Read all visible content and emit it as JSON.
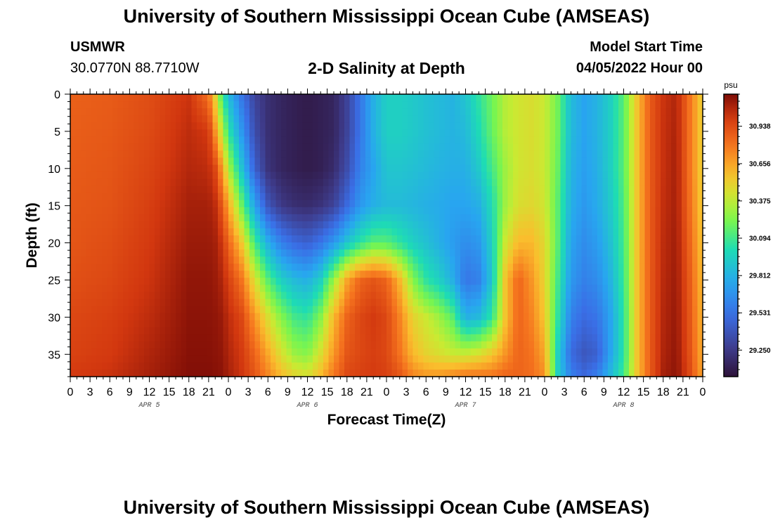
{
  "page": {
    "title": "University of Southern Mississippi Ocean Cube (AMSEAS)",
    "station": "USMWR",
    "coordinates": "30.0770N  88.7710W",
    "subtitle": "2-D Salinity at Depth",
    "model_start_label": "Model Start Time",
    "model_start_value": "04/05/2022 Hour 00",
    "footer_title": "University of Southern Mississippi Ocean Cube (AMSEAS)"
  },
  "chart_data": {
    "type": "heatmap",
    "title": "2-D Salinity at Depth",
    "xlabel": "Forecast Time(Z)",
    "ylabel": "Depth (ft)",
    "x_range_hours": [
      0,
      96
    ],
    "y_range_ft": [
      0,
      38
    ],
    "x_tick_hours": [
      0,
      3,
      6,
      9,
      12,
      15,
      18,
      21,
      24,
      27,
      30,
      33,
      36,
      39,
      42,
      45,
      48,
      51,
      54,
      57,
      60,
      63,
      66,
      69,
      72,
      75,
      78,
      81,
      84,
      87,
      90,
      93,
      96
    ],
    "x_tick_labels": [
      "0",
      "3",
      "6",
      "9",
      "12",
      "15",
      "18",
      "21",
      "0",
      "3",
      "6",
      "9",
      "12",
      "15",
      "18",
      "21",
      "0",
      "3",
      "6",
      "9",
      "12",
      "15",
      "18",
      "21",
      "0",
      "3",
      "6",
      "9",
      "12",
      "15",
      "18",
      "21",
      "0"
    ],
    "day_labels": [
      {
        "label": "APR 5",
        "hour": 12
      },
      {
        "label": "APR 6",
        "hour": 36
      },
      {
        "label": "APR 7",
        "hour": 60
      },
      {
        "label": "APR 8",
        "hour": 84
      }
    ],
    "y_ticks": [
      0,
      5,
      10,
      15,
      20,
      25,
      30,
      35
    ],
    "y_tick_labels": [
      "0",
      "5",
      "10",
      "15",
      "20",
      "25",
      "30",
      "35"
    ],
    "colorbar": {
      "unit": "psu",
      "range": [
        29.05,
        31.18
      ],
      "ticks": [
        29.25,
        29.531,
        29.812,
        30.094,
        30.375,
        30.656,
        30.938
      ],
      "tick_labels": [
        "29.250",
        "29.531",
        "29.812",
        "30.094",
        "30.375",
        "30.656",
        "30.938"
      ]
    },
    "time_hours": [
      0,
      6,
      12,
      18,
      21,
      22,
      23,
      24,
      26,
      28,
      30,
      32,
      34,
      36,
      38,
      40,
      42,
      44,
      46,
      48,
      50,
      52,
      54,
      56,
      58,
      60,
      62,
      64,
      66,
      68,
      70,
      72,
      74,
      76,
      78,
      80,
      82,
      84,
      86,
      88,
      90,
      92,
      94,
      96
    ],
    "depth_ft": [
      0,
      5,
      10,
      15,
      20,
      25,
      30,
      35,
      38
    ],
    "salinity_psu": [
      [
        30.86,
        30.87,
        30.88,
        30.89,
        30.9,
        30.92,
        30.95,
        30.97,
        31.0
      ],
      [
        30.88,
        30.89,
        30.9,
        30.91,
        30.93,
        30.95,
        30.98,
        31.0,
        31.03
      ],
      [
        30.93,
        30.94,
        30.96,
        30.98,
        31.0,
        31.02,
        31.05,
        31.08,
        31.1
      ],
      [
        31.02,
        31.05,
        31.07,
        31.1,
        31.12,
        31.14,
        31.15,
        31.16,
        31.17
      ],
      [
        30.8,
        31.0,
        31.05,
        31.1,
        31.12,
        31.14,
        31.15,
        31.16,
        31.17
      ],
      [
        30.5,
        30.7,
        30.95,
        31.05,
        31.1,
        31.12,
        31.14,
        31.15,
        31.16
      ],
      [
        30.1,
        30.4,
        30.7,
        30.9,
        31.02,
        31.08,
        31.12,
        31.14,
        31.15
      ],
      [
        29.85,
        30.05,
        30.35,
        30.65,
        30.85,
        30.98,
        31.05,
        31.08,
        31.1
      ],
      [
        29.55,
        29.7,
        29.9,
        30.2,
        30.55,
        30.8,
        30.95,
        31.0,
        31.02
      ],
      [
        29.3,
        29.35,
        29.45,
        29.75,
        30.1,
        30.45,
        30.7,
        30.85,
        30.9
      ],
      [
        29.2,
        29.2,
        29.22,
        29.4,
        29.8,
        30.15,
        30.45,
        30.65,
        30.75
      ],
      [
        29.15,
        29.15,
        29.15,
        29.25,
        29.6,
        29.95,
        30.25,
        30.45,
        30.6
      ],
      [
        29.12,
        29.12,
        29.12,
        29.2,
        29.5,
        29.85,
        30.1,
        30.3,
        30.5
      ],
      [
        29.1,
        29.1,
        29.1,
        29.18,
        29.45,
        29.8,
        30.05,
        30.25,
        30.45
      ],
      [
        29.12,
        29.12,
        29.12,
        29.22,
        29.55,
        29.95,
        30.25,
        30.45,
        30.6
      ],
      [
        29.15,
        29.15,
        29.18,
        29.3,
        29.7,
        30.3,
        30.6,
        30.7,
        30.8
      ],
      [
        29.3,
        29.3,
        29.35,
        29.5,
        29.9,
        30.65,
        30.85,
        30.9,
        30.95
      ],
      [
        29.55,
        29.55,
        29.6,
        29.7,
        30.05,
        30.85,
        30.95,
        30.95,
        30.98
      ],
      [
        29.8,
        29.8,
        29.75,
        29.8,
        30.15,
        30.9,
        31.0,
        30.98,
        31.0
      ],
      [
        29.95,
        29.95,
        29.9,
        29.85,
        30.15,
        30.85,
        30.95,
        30.95,
        30.98
      ],
      [
        29.95,
        29.95,
        29.9,
        29.85,
        30.05,
        30.6,
        30.75,
        30.8,
        30.9
      ],
      [
        29.92,
        29.92,
        29.88,
        29.83,
        29.95,
        30.25,
        30.5,
        30.6,
        30.75
      ],
      [
        29.88,
        29.88,
        29.85,
        29.8,
        29.88,
        30.05,
        30.4,
        30.5,
        30.7
      ],
      [
        29.85,
        29.85,
        29.82,
        29.78,
        29.8,
        29.95,
        30.3,
        30.45,
        30.7
      ],
      [
        29.82,
        29.82,
        29.8,
        29.75,
        29.72,
        29.8,
        30.15,
        30.4,
        30.75
      ],
      [
        29.9,
        29.85,
        29.8,
        29.75,
        29.65,
        29.55,
        29.8,
        30.4,
        30.8
      ],
      [
        30.05,
        30.0,
        29.92,
        29.8,
        29.7,
        29.6,
        29.85,
        30.45,
        30.8
      ],
      [
        30.2,
        30.18,
        30.1,
        30.0,
        29.95,
        29.9,
        30.05,
        30.55,
        30.8
      ],
      [
        30.35,
        30.35,
        30.3,
        30.3,
        30.4,
        30.55,
        30.55,
        30.7,
        30.85
      ],
      [
        30.42,
        30.42,
        30.42,
        30.45,
        30.6,
        30.85,
        30.85,
        30.85,
        30.85
      ],
      [
        30.45,
        30.45,
        30.45,
        30.48,
        30.6,
        30.7,
        30.75,
        30.8,
        30.82
      ],
      [
        30.4,
        30.4,
        30.4,
        30.42,
        30.48,
        30.5,
        30.55,
        30.65,
        30.72
      ],
      [
        30.2,
        30.2,
        30.18,
        30.15,
        30.15,
        30.1,
        30.05,
        29.95,
        29.95
      ],
      [
        29.85,
        29.85,
        29.82,
        29.8,
        29.75,
        29.7,
        29.6,
        29.5,
        29.6
      ],
      [
        29.75,
        29.75,
        29.73,
        29.7,
        29.65,
        29.6,
        29.5,
        29.4,
        29.5
      ],
      [
        29.82,
        29.82,
        29.8,
        29.78,
        29.72,
        29.65,
        29.55,
        29.45,
        29.6
      ],
      [
        29.95,
        29.95,
        29.95,
        29.92,
        29.88,
        29.82,
        29.75,
        29.75,
        29.85
      ],
      [
        30.15,
        30.15,
        30.15,
        30.12,
        30.1,
        30.08,
        30.05,
        30.05,
        30.1
      ],
      [
        30.55,
        30.55,
        30.55,
        30.55,
        30.55,
        30.55,
        30.55,
        30.55,
        30.55
      ],
      [
        30.88,
        30.88,
        30.88,
        30.88,
        30.88,
        30.88,
        30.88,
        30.88,
        30.88
      ],
      [
        31.02,
        31.03,
        31.03,
        31.04,
        31.05,
        31.06,
        31.07,
        31.08,
        31.1
      ],
      [
        31.08,
        31.09,
        31.1,
        31.1,
        31.11,
        31.12,
        31.13,
        31.14,
        31.15
      ],
      [
        30.8,
        30.8,
        30.8,
        30.82,
        30.85,
        30.88,
        30.9,
        30.92,
        30.95
      ],
      [
        30.5,
        30.5,
        30.5,
        30.52,
        30.55,
        30.58,
        30.6,
        30.62,
        30.65
      ]
    ]
  }
}
